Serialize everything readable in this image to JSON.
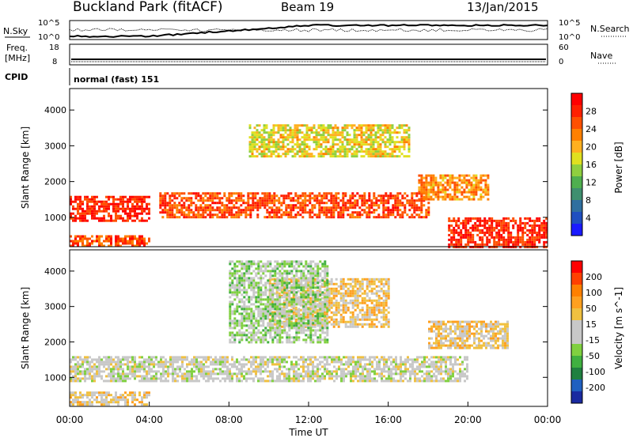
{
  "header": {
    "station": "Buckland Park (fitACF)",
    "beam": "Beam 19",
    "date": "13/Jan/2015"
  },
  "noise_panel": {
    "left_label": "N.Sky",
    "right_label": "N.Search",
    "left_ticks": [
      "10^5",
      "10^0"
    ],
    "right_ticks": [
      "10^5",
      "10^0"
    ]
  },
  "freq_panel": {
    "left_label_top": "Freq.",
    "left_label_bottom": "[MHz]",
    "right_label": "Nave",
    "left_ticks": [
      "18",
      "8"
    ],
    "right_ticks": [
      "60",
      "0"
    ]
  },
  "cpid_panel": {
    "label": "CPID",
    "value": "normal (fast) 151"
  },
  "x_axis": {
    "label": "Time UT",
    "ticks": [
      "00:00",
      "04:00",
      "08:00",
      "12:00",
      "16:00",
      "20:00",
      "00:00"
    ]
  },
  "power_panel": {
    "ylabel": "Slant Range [km]",
    "yticks": [
      "1000",
      "2000",
      "3000",
      "4000"
    ],
    "colorbar_label": "Power [dB]",
    "colorbar_ticks": [
      "4",
      "8",
      "12",
      "16",
      "20",
      "24",
      "28"
    ],
    "colorbar_colors": [
      "#1a1aff",
      "#1f4fc0",
      "#2f6f9f",
      "#3f8f6f",
      "#4faf4f",
      "#8fcf3f",
      "#e0e020",
      "#ffb020",
      "#ff8000",
      "#ff5000",
      "#ff2000",
      "#ff0000"
    ]
  },
  "velocity_panel": {
    "ylabel": "Slant Range [km]",
    "yticks": [
      "1000",
      "2000",
      "3000",
      "4000"
    ],
    "colorbar_label": "Velocity [m s^-1]",
    "colorbar_ticks": [
      "200",
      "100",
      "50",
      "15",
      "-15",
      "-50",
      "-100",
      "-200"
    ],
    "colorbar_colors": [
      "#1a2aa0",
      "#2060c0",
      "#208040",
      "#40b040",
      "#80d040",
      "#c8c8c8",
      "#c8c8c8",
      "#f0c040",
      "#ffa020",
      "#ff8000",
      "#ff4000",
      "#ff0000"
    ]
  },
  "chart_data": {
    "type": "heatmap",
    "title": "Buckland Park (fitACF)",
    "xlabel": "Time UT",
    "ylabel": "Slant Range [km]",
    "x_range_hours": [
      0,
      24
    ],
    "y_range_km": [
      180,
      4600
    ],
    "grid": false,
    "panels": [
      {
        "name": "Power",
        "unit": "dB",
        "colorbar_range": [
          0,
          32
        ],
        "features": [
          {
            "t_start": 0,
            "t_end": 4,
            "range_km": [
              900,
              1600
            ],
            "value": 28
          },
          {
            "t_start": 4.5,
            "t_end": 18,
            "range_km": [
              1000,
              1700
            ],
            "value": 26
          },
          {
            "t_start": 17.5,
            "t_end": 21,
            "range_km": [
              1500,
              2200
            ],
            "value": 22
          },
          {
            "t_start": 19,
            "t_end": 24,
            "range_km": [
              200,
              1000
            ],
            "value": 28
          },
          {
            "t_start": 9,
            "t_end": 17,
            "range_km": [
              2700,
              3600
            ],
            "value": 18
          },
          {
            "t_start": 0,
            "t_end": 4,
            "range_km": [
              200,
              500
            ],
            "value": 26
          }
        ]
      },
      {
        "name": "Velocity",
        "unit": "m s^-1",
        "colorbar_range": [
          -250,
          250
        ],
        "features": [
          {
            "t_start": 0,
            "t_end": 20,
            "range_km": [
              900,
              1600
            ],
            "value": 0
          },
          {
            "t_start": 10,
            "t_end": 16,
            "range_km": [
              2400,
              3800
            ],
            "value": 60
          },
          {
            "t_start": 8,
            "t_end": 13,
            "range_km": [
              2000,
              4300
            ],
            "value": -40
          },
          {
            "t_start": 0,
            "t_end": 4,
            "range_km": [
              200,
              600
            ],
            "value": 40
          },
          {
            "t_start": 18,
            "t_end": 22,
            "range_km": [
              1800,
              2600
            ],
            "value": 50
          }
        ]
      }
    ]
  }
}
